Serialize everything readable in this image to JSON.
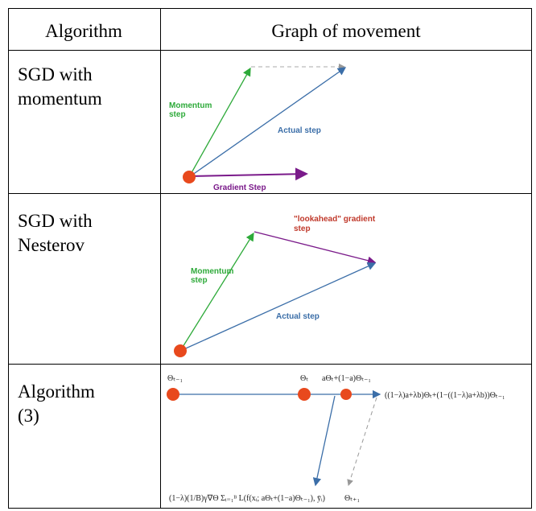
{
  "table": {
    "header": [
      "Algorithm",
      "Graph of movement"
    ],
    "rows": [
      {
        "algorithm": [
          "SGD with",
          "momentum"
        ],
        "labels": {
          "momentum": [
            "Momentum",
            "step"
          ],
          "actual": "Actual step",
          "gradient": "Gradient Step"
        }
      },
      {
        "algorithm": [
          "SGD with",
          "Nesterov"
        ],
        "labels": {
          "lookahead": [
            "\"lookahead\" gradient",
            "step"
          ],
          "momentum": [
            "Momentum",
            "step"
          ],
          "actual": "Actual step"
        }
      },
      {
        "algorithm": [
          "Algorithm",
          "(3)"
        ],
        "labels": {
          "theta_prev": "Θₜ₋₁",
          "theta_t": "Θₜ",
          "mix": "aΘₜ+(1−a)Θₜ₋₁",
          "target": "((1−λ)a+λb)Θₜ+(1−((1−λ)a+λb))Θₜ₋₁",
          "gradient": "(1−λ)(1/B)γ∇Θ Σᵢ₌₁ᴮ L(f(xᵢ; aΘₜ+(1−a)Θₜ₋₁), ȳᵢ)",
          "theta_next": "Θₜ₊₁"
        }
      }
    ]
  }
}
